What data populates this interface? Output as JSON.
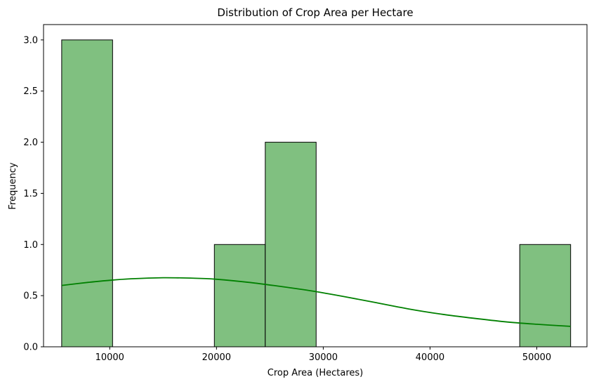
{
  "chart_data": {
    "type": "bar",
    "subtype": "histogram-with-kde",
    "title": "Distribution of Crop Area per Hectare",
    "xlabel": "Crop Area (Hectares)",
    "ylabel": "Frequency",
    "xlim": [
      3800,
      54700
    ],
    "ylim": [
      0,
      3.15
    ],
    "x_ticks": [
      10000,
      20000,
      30000,
      40000,
      50000
    ],
    "x_tick_labels": [
      "10000",
      "20000",
      "30000",
      "40000",
      "50000"
    ],
    "y_ticks": [
      0,
      0.5,
      1.0,
      1.5,
      2.0,
      2.5,
      3.0
    ],
    "y_tick_labels": [
      "0.0",
      "0.5",
      "1.0",
      "1.5",
      "2.0",
      "2.5",
      "3.0"
    ],
    "bins": [
      {
        "x0": 5500,
        "x1": 10267,
        "count": 3
      },
      {
        "x0": 10267,
        "x1": 15033,
        "count": 0
      },
      {
        "x0": 15033,
        "x1": 19800,
        "count": 0
      },
      {
        "x0": 19800,
        "x1": 24567,
        "count": 1
      },
      {
        "x0": 24567,
        "x1": 29333,
        "count": 2
      },
      {
        "x0": 29333,
        "x1": 34100,
        "count": 0
      },
      {
        "x0": 34100,
        "x1": 38867,
        "count": 0
      },
      {
        "x0": 38867,
        "x1": 43633,
        "count": 0
      },
      {
        "x0": 43633,
        "x1": 48400,
        "count": 0
      },
      {
        "x0": 48400,
        "x1": 53167,
        "count": 1
      }
    ],
    "kde": {
      "x": [
        5500,
        8000,
        10000,
        12000,
        15000,
        18000,
        20000,
        23000,
        26000,
        29000,
        32000,
        35000,
        38000,
        41000,
        44000,
        47000,
        50000,
        53167
      ],
      "y": [
        0.6,
        0.63,
        0.65,
        0.665,
        0.675,
        0.67,
        0.66,
        0.63,
        0.59,
        0.545,
        0.49,
        0.43,
        0.37,
        0.32,
        0.28,
        0.245,
        0.22,
        0.2
      ]
    },
    "colors": {
      "bar_fill": "#80c080",
      "bar_edge": "#000000",
      "kde_line": "#008000"
    },
    "grid": false,
    "legend": "none"
  }
}
